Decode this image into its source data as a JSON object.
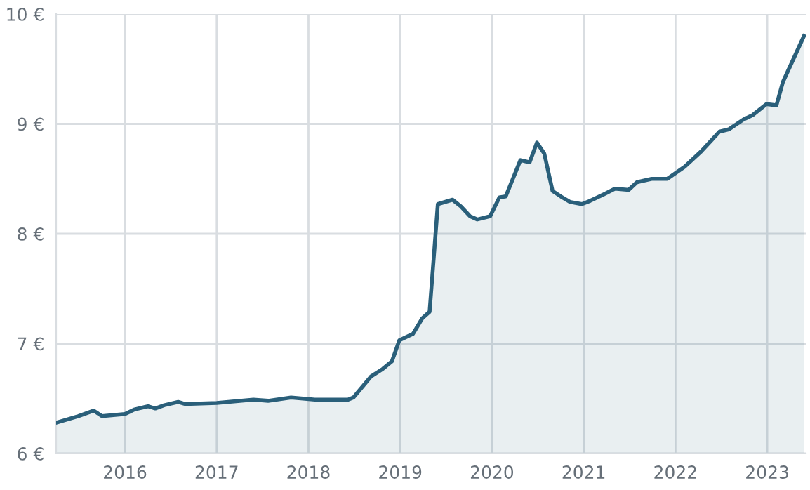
{
  "chart_data": {
    "type": "area",
    "xlim": [
      2015.25,
      2023.42
    ],
    "xticks": [
      2016,
      2017,
      2018,
      2019,
      2020,
      2021,
      2022,
      2023
    ],
    "ylim": [
      6,
      10
    ],
    "yticks": [
      {
        "value": 6,
        "label": "6 €"
      },
      {
        "value": 7,
        "label": "7 €"
      },
      {
        "value": 8,
        "label": "8 €"
      },
      {
        "value": 9,
        "label": "9 €"
      },
      {
        "value": 10,
        "label": "10 €"
      }
    ],
    "grid": true,
    "legend": false,
    "series": [
      {
        "color": "#2a5f7a",
        "x": [
          2015.25,
          2015.49,
          2015.66,
          2015.75,
          2016.0,
          2016.1,
          2016.25,
          2016.33,
          2016.43,
          2016.58,
          2016.66,
          2017.0,
          2017.4,
          2017.56,
          2017.81,
          2018.07,
          2018.43,
          2018.49,
          2018.68,
          2018.81,
          2018.91,
          2018.99,
          2019.14,
          2019.24,
          2019.32,
          2019.41,
          2019.57,
          2019.66,
          2019.76,
          2019.84,
          2019.98,
          2020.08,
          2020.15,
          2020.31,
          2020.41,
          2020.49,
          2020.57,
          2020.66,
          2020.75,
          2020.85,
          2020.98,
          2021.07,
          2021.22,
          2021.34,
          2021.49,
          2021.58,
          2021.74,
          2021.91,
          2022.1,
          2022.28,
          2022.48,
          2022.58,
          2022.74,
          2022.84,
          2022.99,
          2023.1,
          2023.17,
          2023.4
        ],
        "values": [
          6.28,
          6.34,
          6.39,
          6.34,
          6.36,
          6.4,
          6.43,
          6.41,
          6.44,
          6.47,
          6.45,
          6.46,
          6.49,
          6.48,
          6.51,
          6.49,
          6.49,
          6.51,
          6.7,
          6.77,
          6.84,
          7.03,
          7.09,
          7.23,
          7.29,
          8.27,
          8.31,
          8.25,
          8.16,
          8.13,
          8.16,
          8.33,
          8.34,
          8.67,
          8.65,
          8.83,
          8.73,
          8.39,
          8.34,
          8.29,
          8.27,
          8.3,
          8.36,
          8.41,
          8.4,
          8.47,
          8.5,
          8.5,
          8.61,
          8.75,
          8.93,
          8.95,
          9.04,
          9.08,
          9.18,
          9.17,
          9.38,
          9.8
        ]
      }
    ]
  }
}
